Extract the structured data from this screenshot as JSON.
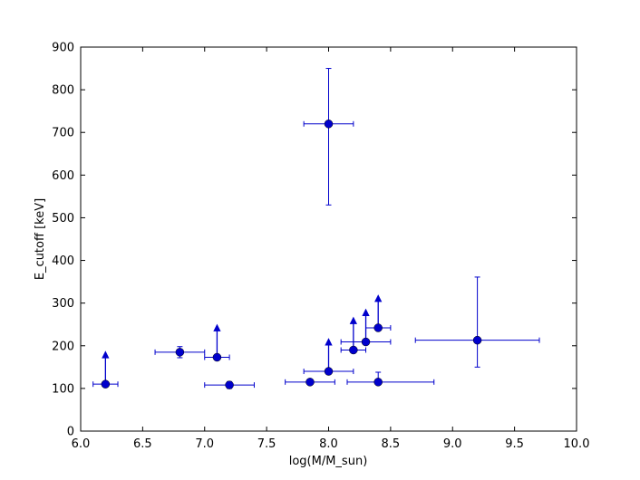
{
  "chart_data": {
    "type": "scatter",
    "xlabel": "log(M/M_sun)",
    "ylabel": "E_cutoff [keV]",
    "xlim": [
      6.0,
      10.0
    ],
    "ylim": [
      0,
      900
    ],
    "xticks": [
      6.0,
      6.5,
      7.0,
      7.5,
      8.0,
      8.5,
      9.0,
      9.5,
      10.0
    ],
    "yticks": [
      0,
      100,
      200,
      300,
      400,
      500,
      600,
      700,
      800,
      900
    ],
    "xtick_labels": [
      "6.0",
      "6.5",
      "7.0",
      "7.5",
      "8.0",
      "8.5",
      "9.0",
      "9.5",
      "10.0"
    ],
    "ytick_labels": [
      "0",
      "100",
      "200",
      "300",
      "400",
      "500",
      "600",
      "700",
      "800",
      "900"
    ],
    "grid": false,
    "color": "#0000cc",
    "points": [
      {
        "x": 6.2,
        "y": 110,
        "xerr": [
          0.1,
          0.1
        ],
        "yerr": null,
        "lower_limit": true
      },
      {
        "x": 6.8,
        "y": 185,
        "xerr": [
          0.2,
          0.2
        ],
        "yerr": [
          13,
          13
        ],
        "lower_limit": false
      },
      {
        "x": 7.1,
        "y": 173,
        "xerr": [
          0.1,
          0.1
        ],
        "yerr": null,
        "lower_limit": true
      },
      {
        "x": 7.2,
        "y": 108,
        "xerr": [
          0.2,
          0.2
        ],
        "yerr": [
          8,
          8
        ],
        "lower_limit": false
      },
      {
        "x": 7.85,
        "y": 115,
        "xerr": [
          0.2,
          0.2
        ],
        "yerr": null,
        "lower_limit": false
      },
      {
        "x": 8.0,
        "y": 720,
        "xerr": [
          0.2,
          0.2
        ],
        "yerr": [
          190,
          130
        ],
        "lower_limit": false
      },
      {
        "x": 8.0,
        "y": 140,
        "xerr": [
          0.2,
          0.2
        ],
        "yerr": null,
        "lower_limit": true
      },
      {
        "x": 8.2,
        "y": 190,
        "xerr": [
          0.1,
          0.1
        ],
        "yerr": null,
        "lower_limit": true
      },
      {
        "x": 8.3,
        "y": 209,
        "xerr": [
          0.2,
          0.2
        ],
        "yerr": null,
        "lower_limit": true
      },
      {
        "x": 8.4,
        "y": 242,
        "xerr": [
          0.1,
          0.1
        ],
        "yerr": null,
        "lower_limit": true
      },
      {
        "x": 8.4,
        "y": 115,
        "xerr": [
          0.25,
          0.45
        ],
        "yerr": [
          0,
          23
        ],
        "lower_limit": false
      },
      {
        "x": 9.2,
        "y": 213,
        "xerr": [
          0.5,
          0.5
        ],
        "yerr": [
          63,
          148
        ],
        "lower_limit": false
      }
    ]
  }
}
